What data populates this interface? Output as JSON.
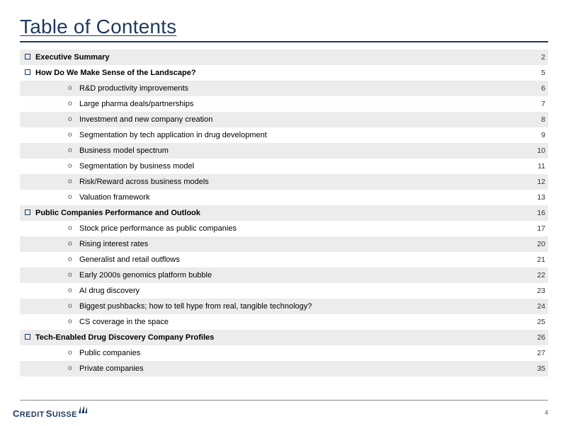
{
  "title": "Table of Contents",
  "page_number": "4",
  "footer": {
    "brand1": "C",
    "brand2": "REDIT",
    "brand3": "S",
    "brand4": "UISSE"
  },
  "colors": {
    "title": "#1f3a5f",
    "rule": "#1f3a5f",
    "zebra": "#ececec",
    "text": "#000000",
    "page_col": "#333333"
  },
  "toc": [
    {
      "level": 0,
      "label": "Executive Summary",
      "page": "2",
      "zebra": true
    },
    {
      "level": 0,
      "label": "How Do We Make Sense of the Landscape?",
      "page": "5",
      "zebra": false
    },
    {
      "level": 1,
      "label": "R&D productivity improvements",
      "page": "6",
      "zebra": true
    },
    {
      "level": 1,
      "label": "Large pharma deals/partnerships",
      "page": "7",
      "zebra": false
    },
    {
      "level": 1,
      "label": "Investment and new company creation",
      "page": "8",
      "zebra": true
    },
    {
      "level": 1,
      "label": "Segmentation by tech application in drug development",
      "page": "9",
      "zebra": false
    },
    {
      "level": 1,
      "label": "Business model spectrum",
      "page": "10",
      "zebra": true
    },
    {
      "level": 1,
      "label": "Segmentation by business model",
      "page": "11",
      "zebra": false
    },
    {
      "level": 1,
      "label": "Risk/Reward across business models",
      "page": "12",
      "zebra": true
    },
    {
      "level": 1,
      "label": "Valuation framework",
      "page": "13",
      "zebra": false
    },
    {
      "level": 0,
      "label": "Public Companies Performance and Outlook",
      "page": "16",
      "zebra": true
    },
    {
      "level": 1,
      "label": "Stock price performance as public companies",
      "page": "17",
      "zebra": false
    },
    {
      "level": 1,
      "label": "Rising interest rates",
      "page": "20",
      "zebra": true
    },
    {
      "level": 1,
      "label": "Generalist and retail outflows",
      "page": "21",
      "zebra": false
    },
    {
      "level": 1,
      "label": "Early 2000s genomics platform bubble",
      "page": "22",
      "zebra": true
    },
    {
      "level": 1,
      "label": "AI drug discovery",
      "page": "23",
      "zebra": false
    },
    {
      "level": 1,
      "label": "Biggest pushbacks; how to tell hype from real, tangible technology?",
      "page": "24",
      "zebra": true
    },
    {
      "level": 1,
      "label": "CS coverage in the space",
      "page": "25",
      "zebra": false
    },
    {
      "level": 0,
      "label": "Tech-Enabled Drug Discovery Company Profiles",
      "page": "26",
      "zebra": true
    },
    {
      "level": 1,
      "label": "Public companies",
      "page": "27",
      "zebra": false
    },
    {
      "level": 1,
      "label": "Private companies",
      "page": "35",
      "zebra": true
    }
  ]
}
